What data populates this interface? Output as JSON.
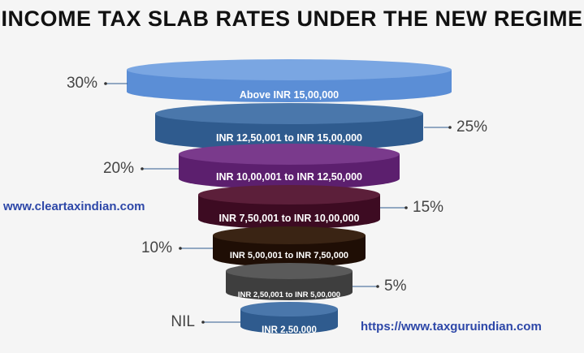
{
  "title": "INCOME TAX SLAB RATES UNDER THE NEW REGIME",
  "watermark_left": "www.cleartaxindian.com",
  "watermark_right": "https://www.taxguruindian.com",
  "slabs": [
    {
      "label": "Above INR 15,00,000",
      "rate": "30%",
      "color": "#5b8ed6",
      "top_color": "#7aa6e2",
      "side": "left"
    },
    {
      "label": "INR 12,50,001 to INR 15,00,000",
      "rate": "25%",
      "color": "#2f5b8e",
      "top_color": "#4a77ab",
      "side": "right"
    },
    {
      "label": "INR 10,00,001 to INR 12,50,000",
      "rate": "20%",
      "color": "#5c1f6e",
      "top_color": "#7a3a8c",
      "side": "left"
    },
    {
      "label": "INR 7,50,001 to INR 10,00,000",
      "rate": "15%",
      "color": "#3d0b22",
      "top_color": "#5c1f3a",
      "side": "right"
    },
    {
      "label": "INR 5,00,001 to INR 7,50,000",
      "rate": "10%",
      "color": "#1f0e05",
      "top_color": "#3a2414",
      "side": "left"
    },
    {
      "label": "INR 2,50,001 to INR 5,00,000",
      "rate": "5%",
      "color": "#3e3e3e",
      "top_color": "#5a5a5a",
      "side": "right"
    },
    {
      "label": "INR 2,50,000",
      "rate": "NIL",
      "color": "#2f5b8e",
      "top_color": "#4a77ab",
      "side": "left"
    }
  ]
}
